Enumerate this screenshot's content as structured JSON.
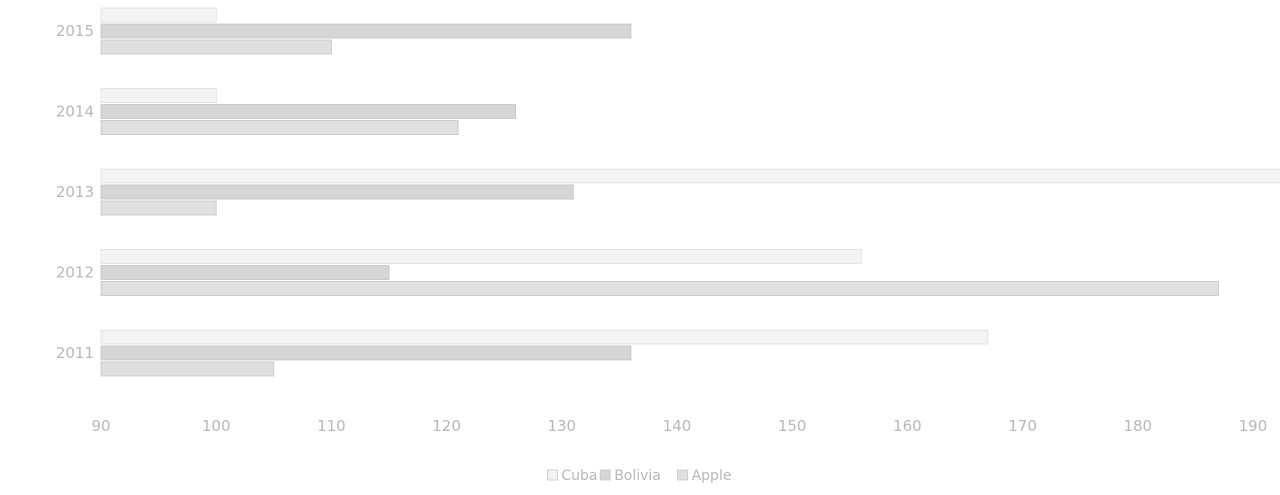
{
  "chart_data": {
    "type": "bar",
    "orientation": "horizontal",
    "categories": [
      "2011",
      "2012",
      "2013",
      "2014",
      "2015"
    ],
    "series": [
      {
        "name": "Cuba",
        "color": "#f3f3f3",
        "values": [
          167,
          156,
          193,
          100,
          100
        ]
      },
      {
        "name": "Bolivia",
        "color": "#d6d6d6",
        "values": [
          136,
          115,
          131,
          126,
          136
        ]
      },
      {
        "name": "Apple",
        "color": "#e0e0e0",
        "values": [
          105,
          187,
          100,
          121,
          110
        ]
      }
    ],
    "x_ticks": [
      "90",
      "100",
      "110",
      "120",
      "130",
      "140",
      "150",
      "160",
      "170",
      "180",
      "190"
    ],
    "xlim": [
      90,
      192
    ],
    "grid": false,
    "legend_position": "bottom"
  }
}
